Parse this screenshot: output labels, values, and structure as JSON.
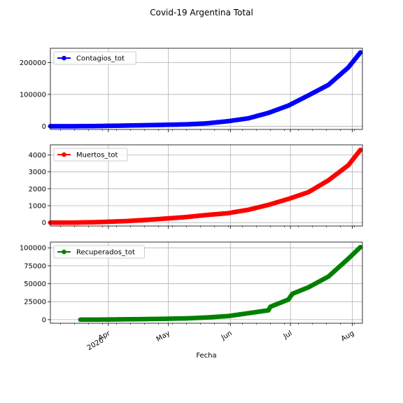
{
  "figure": {
    "title": "Covid-19 Argentina Total",
    "xlabel": "Fecha"
  },
  "chart_data": [
    {
      "type": "line",
      "legend": "top-left",
      "grid": true,
      "ylim": [
        -10000,
        245000
      ],
      "yticks": [
        0,
        100000,
        200000
      ],
      "ytick_labels": [
        "0",
        "100000",
        "200000"
      ],
      "series": [
        {
          "name": "Contagios_tot",
          "color": "#0000ff",
          "x": [
            "2020-03-03",
            "2020-03-15",
            "2020-03-27",
            "2020-04-10",
            "2020-04-25",
            "2020-05-10",
            "2020-05-20",
            "2020-05-31",
            "2020-06-10",
            "2020-06-20",
            "2020-06-30",
            "2020-07-10",
            "2020-07-20",
            "2020-07-30",
            "2020-08-05"
          ],
          "y": [
            1,
            45,
            800,
            2200,
            3900,
            6000,
            9000,
            16000,
            25000,
            42000,
            65000,
            97000,
            130000,
            185000,
            232000
          ]
        }
      ]
    },
    {
      "type": "line",
      "legend": "top-left",
      "grid": true,
      "ylim": [
        -200,
        4600
      ],
      "yticks": [
        0,
        1000,
        2000,
        3000,
        4000
      ],
      "ytick_labels": [
        "0",
        "1000",
        "2000",
        "3000",
        "4000"
      ],
      "series": [
        {
          "name": "Muertos_tot",
          "color": "#ff0000",
          "x": [
            "2020-03-03",
            "2020-03-15",
            "2020-03-27",
            "2020-04-10",
            "2020-04-25",
            "2020-05-10",
            "2020-05-20",
            "2020-05-31",
            "2020-06-10",
            "2020-06-20",
            "2020-06-30",
            "2020-07-10",
            "2020-07-20",
            "2020-07-30",
            "2020-08-05"
          ],
          "y": [
            0,
            2,
            30,
            90,
            200,
            330,
            450,
            560,
            760,
            1050,
            1400,
            1800,
            2500,
            3400,
            4300
          ]
        }
      ]
    },
    {
      "type": "line",
      "legend": "top-left",
      "grid": true,
      "ylim": [
        -5000,
        108000
      ],
      "yticks": [
        0,
        25000,
        50000,
        75000,
        100000
      ],
      "ytick_labels": [
        "0",
        "25000",
        "50000",
        "75000",
        "100000"
      ],
      "xticks": [
        "2020-04-01",
        "2020-05-01",
        "2020-06-01",
        "2020-07-01",
        "2020-08-01"
      ],
      "xtick_labels": [
        "Apr\n2020",
        "May",
        "Jun",
        "Jul",
        "Aug"
      ],
      "series": [
        {
          "name": "Recuperados_tot",
          "color": "#008000",
          "x": [
            "2020-03-18",
            "2020-03-27",
            "2020-04-10",
            "2020-04-25",
            "2020-05-10",
            "2020-05-20",
            "2020-05-31",
            "2020-06-10",
            "2020-06-20",
            "2020-06-21",
            "2020-06-30",
            "2020-07-02",
            "2020-07-10",
            "2020-07-20",
            "2020-07-30",
            "2020-08-05"
          ],
          "y": [
            0,
            80,
            500,
            1000,
            1800,
            3000,
            5000,
            9000,
            13000,
            18000,
            28000,
            36000,
            45000,
            60000,
            85000,
            101000
          ]
        }
      ]
    }
  ]
}
